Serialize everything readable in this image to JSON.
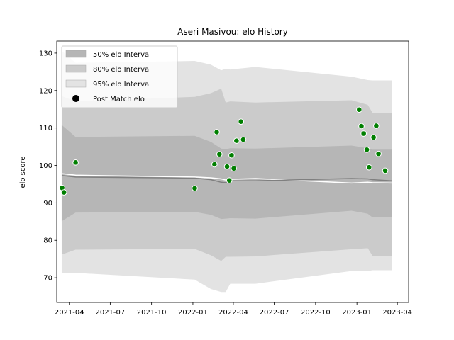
{
  "chart_data": {
    "type": "line",
    "title": "Aseri Masivou: elo History",
    "xlabel": "",
    "ylabel": "elo score",
    "xlim": [
      "2021-03-04",
      "2023-04-26"
    ],
    "ylim": [
      63.4,
      133.2
    ],
    "x_ticks": [
      {
        "date": "2021-04-01",
        "label": "2021-04"
      },
      {
        "date": "2021-07-01",
        "label": "2021-07"
      },
      {
        "date": "2021-10-01",
        "label": "2021-10"
      },
      {
        "date": "2022-01-01",
        "label": "2022-01"
      },
      {
        "date": "2022-04-01",
        "label": "2022-04"
      },
      {
        "date": "2022-07-01",
        "label": "2022-07"
      },
      {
        "date": "2022-10-01",
        "label": "2022-10"
      },
      {
        "date": "2023-01-01",
        "label": "2023-01"
      },
      {
        "date": "2023-04-01",
        "label": "2023-04"
      }
    ],
    "y_ticks": [
      70,
      80,
      90,
      100,
      110,
      120,
      130
    ],
    "legend": {
      "placement": "top-left",
      "entries": [
        {
          "label": "50% elo Interval",
          "color": "#b0b0b0"
        },
        {
          "label": "80% elo Interval",
          "color": "#c8c8c8"
        },
        {
          "label": "95% elo Interval",
          "color": "#e0e0e0"
        },
        {
          "label": "Post Match elo",
          "color": "#000000"
        }
      ]
    },
    "colors": {
      "band95": "#e3e3e3",
      "band80": "#cbcbcb",
      "band50": "#b6b6b6",
      "mean_line": "#7f7f7f",
      "median_line": "#ffffff",
      "point_fill": "#007f00",
      "point_edge": "#ffffff"
    },
    "interval_bands": {
      "x": [
        "2021-03-15",
        "2021-04-15",
        "2022-01-05",
        "2022-02-10",
        "2022-03-05",
        "2022-03-15",
        "2022-03-25",
        "2022-05-20",
        "2022-12-20",
        "2023-01-25",
        "2023-02-05",
        "2023-03-20"
      ],
      "band95_upper": [
        130.6,
        127.4,
        127.9,
        126.9,
        125.4,
        125.8,
        125.6,
        126.3,
        123.7,
        122.8,
        122.7,
        122.7
      ],
      "band95_lower": [
        71.3,
        71.3,
        69.5,
        67.0,
        66.2,
        66.2,
        68.4,
        68.4,
        71.8,
        71.8,
        72.0,
        72.0
      ],
      "band80_upper": [
        118.5,
        117.1,
        118.3,
        119.3,
        120.5,
        116.8,
        117.1,
        116.8,
        117.4,
        116.2,
        114.0,
        114.0
      ],
      "band80_lower": [
        76.2,
        77.5,
        77.7,
        76.0,
        74.5,
        75.6,
        75.6,
        75.7,
        77.6,
        77.9,
        75.8,
        75.8
      ],
      "band50_upper": [
        110.8,
        107.6,
        107.9,
        106.3,
        104.5,
        104.3,
        104.6,
        104.5,
        105.3,
        104.6,
        104.2,
        104.2
      ],
      "band50_lower": [
        85.1,
        87.4,
        87.6,
        86.8,
        85.7,
        85.8,
        85.9,
        85.8,
        87.9,
        87.1,
        86.1,
        86.1
      ],
      "mean_elo": [
        97.3,
        96.9,
        96.6,
        96.2,
        95.5,
        95.4,
        95.9,
        95.9,
        96.5,
        96.4,
        96.2,
        95.9
      ],
      "median_elo": [
        97.8,
        97.4,
        96.9,
        96.7,
        96.4,
        96.1,
        96.3,
        96.5,
        95.3,
        95.5,
        95.4,
        95.3
      ]
    },
    "post_match_points": [
      {
        "x": "2021-03-16",
        "y": 94.0
      },
      {
        "x": "2021-03-20",
        "y": 92.8
      },
      {
        "x": "2021-04-15",
        "y": 100.8
      },
      {
        "x": "2022-01-05",
        "y": 93.9
      },
      {
        "x": "2022-02-18",
        "y": 100.3
      },
      {
        "x": "2022-02-23",
        "y": 108.9
      },
      {
        "x": "2022-03-01",
        "y": 103.0
      },
      {
        "x": "2022-03-18",
        "y": 99.7
      },
      {
        "x": "2022-03-23",
        "y": 96.0
      },
      {
        "x": "2022-03-28",
        "y": 102.7
      },
      {
        "x": "2022-04-02",
        "y": 99.2
      },
      {
        "x": "2022-04-08",
        "y": 106.6
      },
      {
        "x": "2022-04-18",
        "y": 111.7
      },
      {
        "x": "2022-04-23",
        "y": 106.9
      },
      {
        "x": "2023-01-06",
        "y": 114.9
      },
      {
        "x": "2023-01-11",
        "y": 110.5
      },
      {
        "x": "2023-01-16",
        "y": 108.5
      },
      {
        "x": "2023-01-23",
        "y": 104.2
      },
      {
        "x": "2023-01-28",
        "y": 99.5
      },
      {
        "x": "2023-02-07",
        "y": 107.5
      },
      {
        "x": "2023-02-13",
        "y": 110.6
      },
      {
        "x": "2023-02-18",
        "y": 103.1
      },
      {
        "x": "2023-03-05",
        "y": 98.6
      }
    ]
  }
}
